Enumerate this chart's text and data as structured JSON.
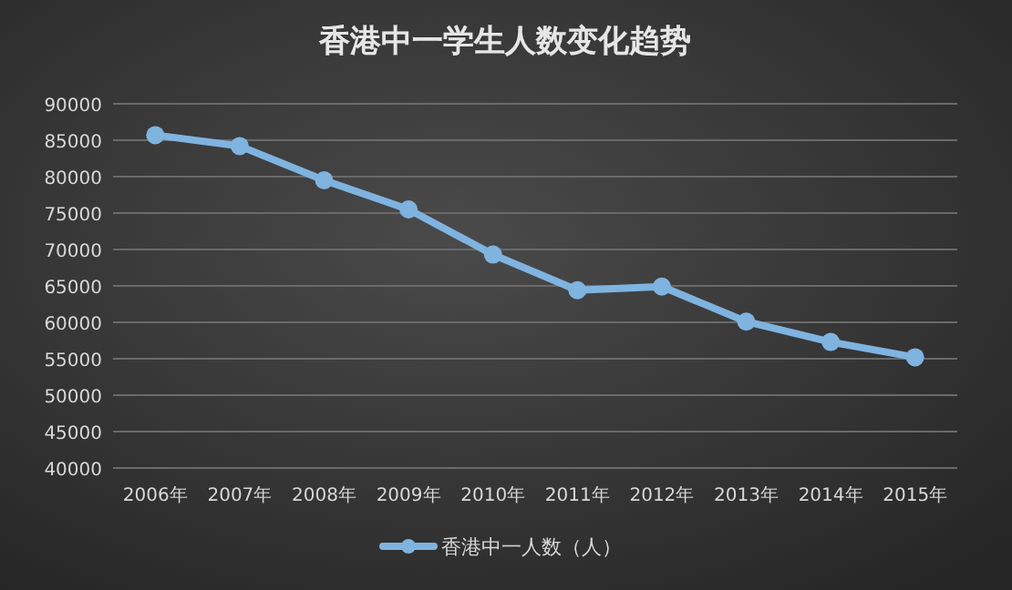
{
  "chart_data": {
    "type": "line",
    "title": "香港中一学生人数变化趋势",
    "categories": [
      "2006年",
      "2007年",
      "2008年",
      "2009年",
      "2010年",
      "2011年",
      "2012年",
      "2013年",
      "2014年",
      "2015年"
    ],
    "series": [
      {
        "name": "香港中一人数（人）",
        "color": "#7fb3e0",
        "values": [
          85700,
          84200,
          79500,
          75500,
          69300,
          64400,
          64900,
          60100,
          57300,
          55200
        ]
      }
    ],
    "ylim": [
      40000,
      90000
    ],
    "yticks": [
      40000,
      45000,
      50000,
      55000,
      60000,
      65000,
      70000,
      75000,
      80000,
      85000,
      90000
    ],
    "grid": "y",
    "legend": "bottom",
    "marker": "circle",
    "line_style": "solid"
  }
}
